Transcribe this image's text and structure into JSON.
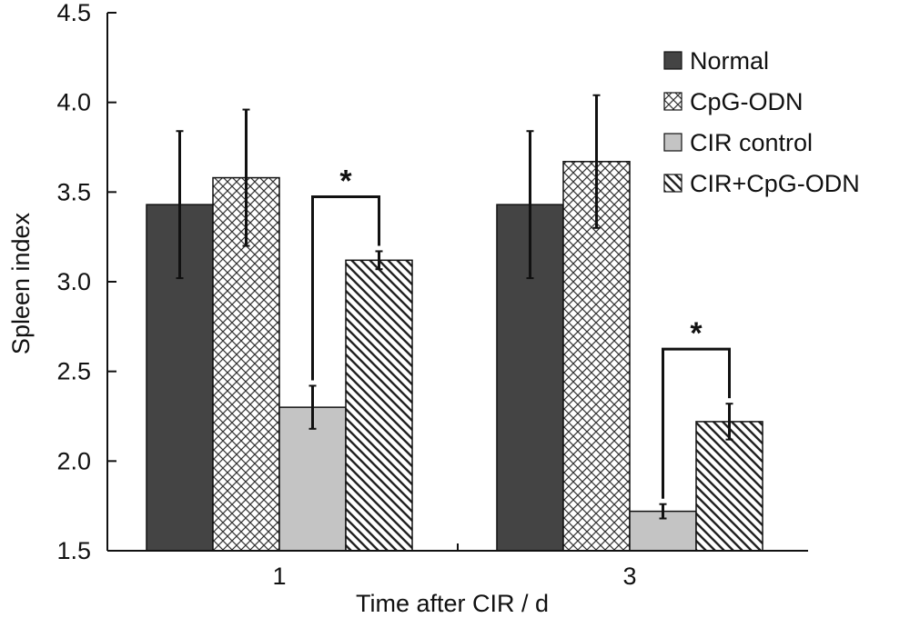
{
  "chart_data": {
    "type": "bar",
    "xlabel": "Time after CIR / d",
    "ylabel": "Spleen index",
    "ylim": [
      1.5,
      4.5
    ],
    "yticks": [
      "1.5",
      "2.0",
      "2.5",
      "3.0",
      "3.5",
      "4.0",
      "4.5"
    ],
    "categories": [
      "1",
      "3"
    ],
    "series": [
      {
        "name": "Normal",
        "values": [
          3.43,
          3.43
        ],
        "errors": [
          0.41,
          0.41
        ],
        "fill": "#444444",
        "pattern": "solid"
      },
      {
        "name": "CpG-ODN",
        "values": [
          3.58,
          3.67
        ],
        "errors": [
          0.38,
          0.37
        ],
        "fill": "#ffffff",
        "pattern": "crosshatch"
      },
      {
        "name": "CIR control",
        "values": [
          2.3,
          1.72
        ],
        "errors": [
          0.12,
          0.04
        ],
        "fill": "#c4c4c4",
        "pattern": "solid"
      },
      {
        "name": "CIR+CpG-ODN",
        "values": [
          3.12,
          2.22
        ],
        "errors": [
          0.05,
          0.1
        ],
        "fill": "#ffffff",
        "pattern": "diagonal"
      }
    ],
    "annotations": [
      {
        "category": "1",
        "between": [
          "CIR control",
          "CIR+CpG-ODN"
        ],
        "text": "*"
      },
      {
        "category": "3",
        "between": [
          "CIR control",
          "CIR+CpG-ODN"
        ],
        "text": "*"
      }
    ],
    "legend": "top-right",
    "grid": false
  }
}
